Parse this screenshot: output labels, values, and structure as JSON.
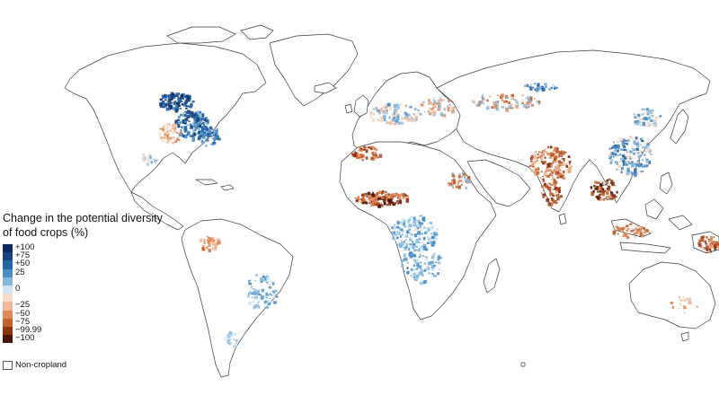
{
  "legend": {
    "title": "Change in the potential diversity of food crops (%)",
    "items": [
      {
        "label": "+100",
        "color": "#0d2a5c"
      },
      {
        "label": "+75",
        "color": "#17427e"
      },
      {
        "label": "+50",
        "color": "#2466a5"
      },
      {
        "label": "25",
        "color": "#4a8ec6"
      },
      {
        "label": "",
        "color": "#86b8de"
      },
      {
        "label": "0",
        "color": "#cfe4f3"
      },
      {
        "label": "",
        "color": "#f7dccb"
      },
      {
        "label": "−25",
        "color": "#f0b899"
      },
      {
        "label": "−50",
        "color": "#df8a58"
      },
      {
        "label": "−75",
        "color": "#c4612e"
      },
      {
        "label": "−99.99",
        "color": "#8f3411"
      },
      {
        "label": "−100",
        "color": "#4a1406"
      }
    ],
    "noncropland_label": "Non-cropland"
  }
}
